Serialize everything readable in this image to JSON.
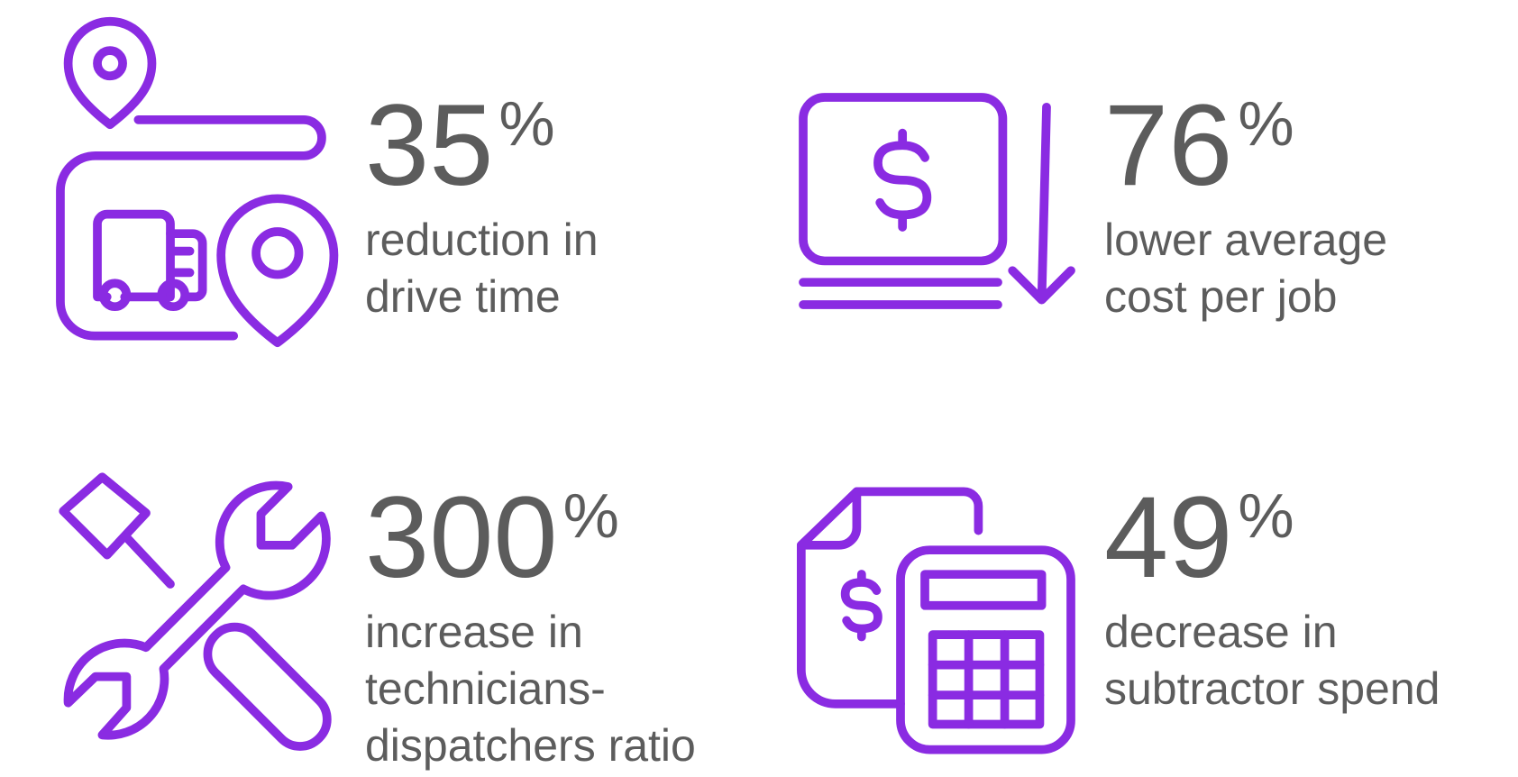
{
  "stats": [
    {
      "value": "35",
      "unit": "%",
      "lines": [
        "reduction in",
        "drive time"
      ]
    },
    {
      "value": "76",
      "unit": "%",
      "lines": [
        "lower average",
        "cost per job"
      ]
    },
    {
      "value": "300",
      "unit": "%",
      "lines": [
        "increase in",
        "technicians-",
        "dispatchers ratio"
      ]
    },
    {
      "value": "49",
      "unit": "%",
      "lines": [
        "decrease in",
        "subtractor spend"
      ]
    }
  ]
}
